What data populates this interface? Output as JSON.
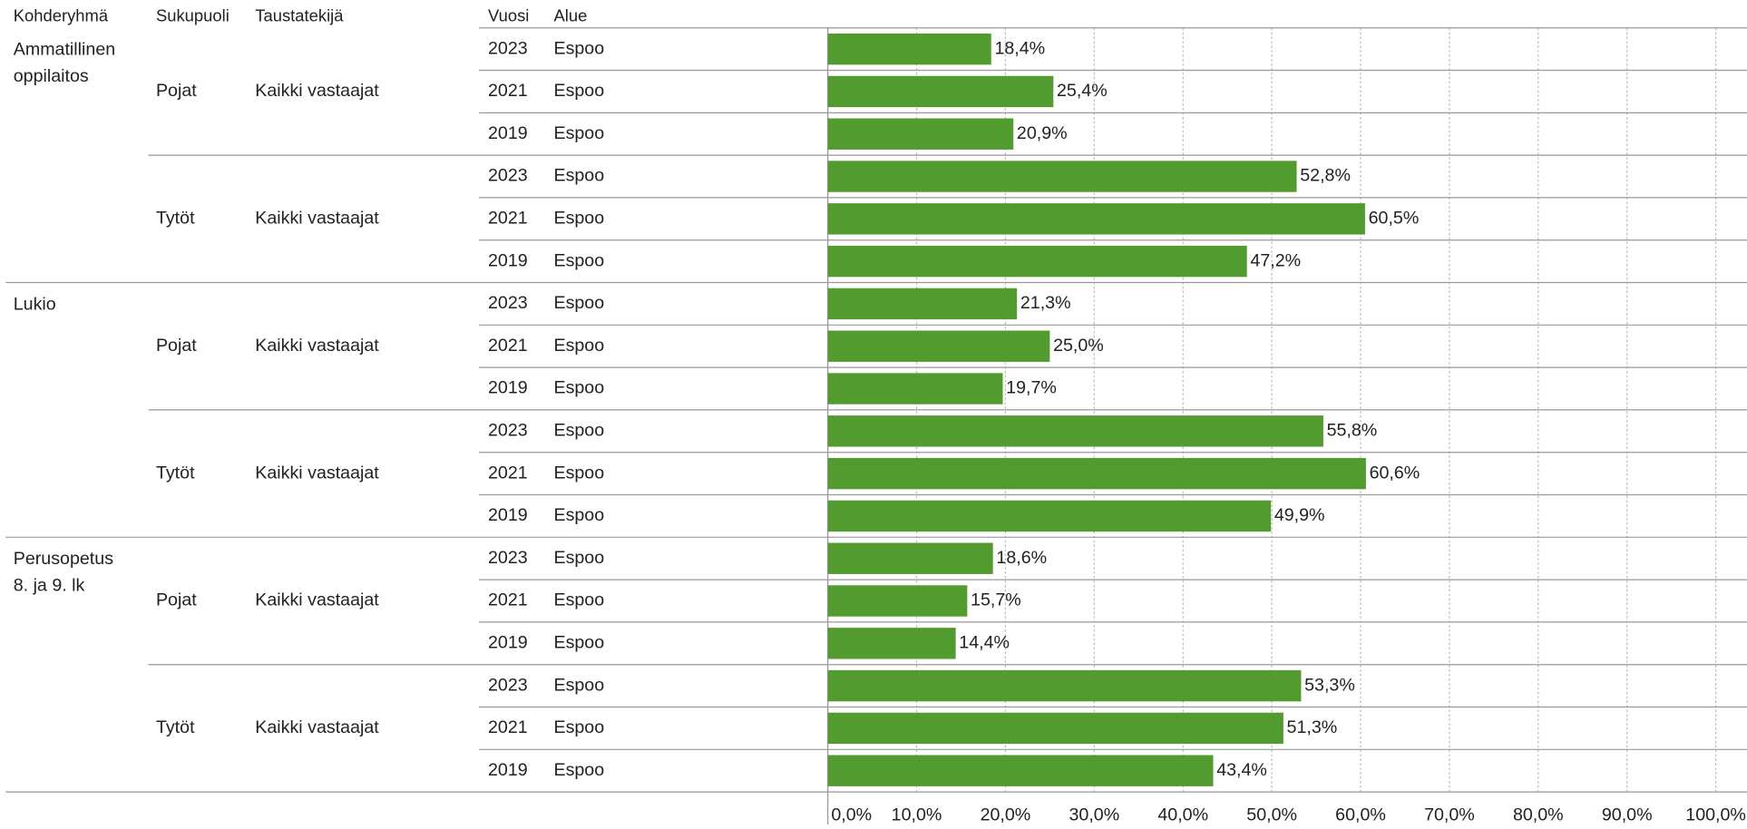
{
  "chart_data": {
    "type": "bar",
    "column_headers": [
      "Kohderyhmä",
      "Sukupuoli",
      "Taustatekijä",
      "Vuosi",
      "Alue"
    ],
    "color": "#529b2f",
    "xlim": [
      0,
      100
    ],
    "xticks": [
      {
        "value": 0,
        "label": "0,0%"
      },
      {
        "value": 10,
        "label": "10,0%"
      },
      {
        "value": 20,
        "label": "20,0%"
      },
      {
        "value": 30,
        "label": "30,0%"
      },
      {
        "value": 40,
        "label": "40,0%"
      },
      {
        "value": 50,
        "label": "50,0%"
      },
      {
        "value": 60,
        "label": "60,0%"
      },
      {
        "value": 70,
        "label": "70,0%"
      },
      {
        "value": 80,
        "label": "80,0%"
      },
      {
        "value": 90,
        "label": "90,0%"
      },
      {
        "value": 100,
        "label": "100,0%"
      }
    ],
    "grid": true,
    "groups": [
      {
        "name": [
          "Ammatillinen",
          "oppilaitos"
        ],
        "subgroups": [
          {
            "gender": "Pojat",
            "background": "Kaikki vastaajat",
            "categories": [
              "2023",
              "2021",
              "2019"
            ],
            "areas": [
              "Espoo",
              "Espoo",
              "Espoo"
            ],
            "values": [
              18.4,
              25.4,
              20.9
            ],
            "value_labels": [
              "18,4%",
              "25,4%",
              "20,9%"
            ]
          },
          {
            "gender": "Tytöt",
            "background": "Kaikki vastaajat",
            "categories": [
              "2023",
              "2021",
              "2019"
            ],
            "areas": [
              "Espoo",
              "Espoo",
              "Espoo"
            ],
            "values": [
              52.8,
              60.5,
              47.2
            ],
            "value_labels": [
              "52,8%",
              "60,5%",
              "47,2%"
            ]
          }
        ]
      },
      {
        "name": [
          "Lukio"
        ],
        "subgroups": [
          {
            "gender": "Pojat",
            "background": "Kaikki vastaajat",
            "categories": [
              "2023",
              "2021",
              "2019"
            ],
            "areas": [
              "Espoo",
              "Espoo",
              "Espoo"
            ],
            "values": [
              21.3,
              25.0,
              19.7
            ],
            "value_labels": [
              "21,3%",
              "25,0%",
              "19,7%"
            ]
          },
          {
            "gender": "Tytöt",
            "background": "Kaikki vastaajat",
            "categories": [
              "2023",
              "2021",
              "2019"
            ],
            "areas": [
              "Espoo",
              "Espoo",
              "Espoo"
            ],
            "values": [
              55.8,
              60.6,
              49.9
            ],
            "value_labels": [
              "55,8%",
              "60,6%",
              "49,9%"
            ]
          }
        ]
      },
      {
        "name": [
          "Perusopetus",
          "8. ja 9. lk"
        ],
        "subgroups": [
          {
            "gender": "Pojat",
            "background": "Kaikki vastaajat",
            "categories": [
              "2023",
              "2021",
              "2019"
            ],
            "areas": [
              "Espoo",
              "Espoo",
              "Espoo"
            ],
            "values": [
              18.6,
              15.7,
              14.4
            ],
            "value_labels": [
              "18,6%",
              "15,7%",
              "14,4%"
            ]
          },
          {
            "gender": "Tytöt",
            "background": "Kaikki vastaajat",
            "categories": [
              "2023",
              "2021",
              "2019"
            ],
            "areas": [
              "Espoo",
              "Espoo",
              "Espoo"
            ],
            "values": [
              53.3,
              51.3,
              43.4
            ],
            "value_labels": [
              "53,3%",
              "51,3%",
              "43,4%"
            ]
          }
        ]
      }
    ]
  }
}
